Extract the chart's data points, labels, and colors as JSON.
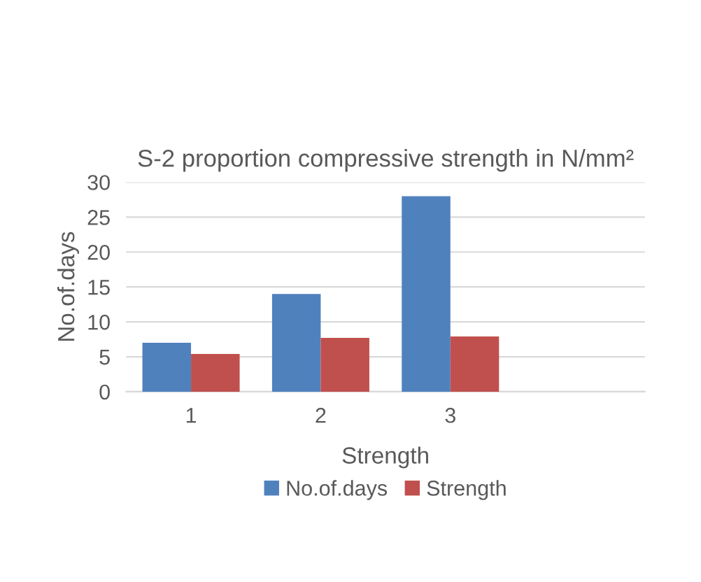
{
  "chart_data": {
    "type": "bar",
    "title": "S-2 proportion compressive strength in N/mm²",
    "xlabel": "Strength",
    "ylabel": "No.of.days",
    "categories": [
      "1",
      "2",
      "3",
      null
    ],
    "series": [
      {
        "name": "No.of.days",
        "color": "#4f81bd",
        "values": [
          7,
          14,
          28,
          null
        ]
      },
      {
        "name": "Strength",
        "color": "#c0504d",
        "values": [
          5.4,
          7.7,
          7.9,
          null
        ]
      }
    ],
    "ylim": [
      0,
      30
    ],
    "yticks": [
      0,
      5,
      10,
      15,
      20,
      25,
      30
    ],
    "grid": "y",
    "legend": "bottom"
  }
}
